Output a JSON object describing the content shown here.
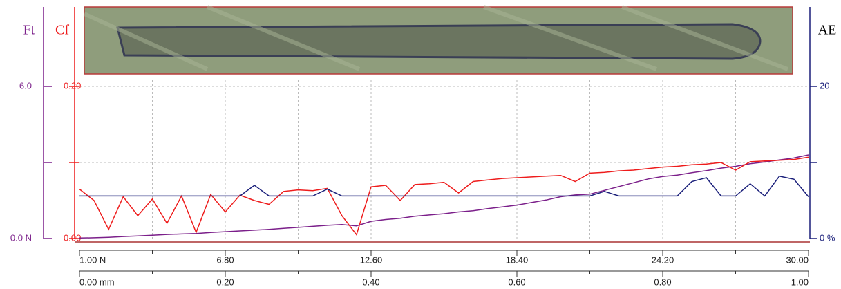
{
  "chart_data": {
    "type": "line",
    "x": [
      0,
      0.02,
      0.04,
      0.06,
      0.08,
      0.1,
      0.12,
      0.14,
      0.16,
      0.18,
      0.2,
      0.22,
      0.24,
      0.26,
      0.28,
      0.3,
      0.32,
      0.34,
      0.36,
      0.38,
      0.4,
      0.42,
      0.44,
      0.46,
      0.48,
      0.5,
      0.52,
      0.54,
      0.56,
      0.58,
      0.6,
      0.62,
      0.64,
      0.66,
      0.68,
      0.7,
      0.72,
      0.74,
      0.76,
      0.78,
      0.8,
      0.82,
      0.84,
      0.86,
      0.88,
      0.9,
      0.92,
      0.94,
      0.96,
      0.98,
      1
    ],
    "xlim": [
      0,
      1
    ],
    "xticks": [
      {
        "value": 0,
        "label": "0.00 mm"
      },
      {
        "value": 0.1,
        "label": null
      },
      {
        "value": 0.2,
        "label": "0.20"
      },
      {
        "value": 0.3,
        "label": null
      },
      {
        "value": 0.4,
        "label": "0.40"
      },
      {
        "value": 0.5,
        "label": null
      },
      {
        "value": 0.6,
        "label": "0.60"
      },
      {
        "value": 0.7,
        "label": null
      },
      {
        "value": 0.8,
        "label": "0.80"
      },
      {
        "value": 0.9,
        "label": null
      },
      {
        "value": 1,
        "label": "1.00"
      }
    ],
    "x2lim": [
      1,
      30
    ],
    "x2ticks": [
      {
        "value": 1,
        "label": "1.00 N"
      },
      {
        "value": 3.9,
        "label": null
      },
      {
        "value": 6.8,
        "label": "6.80"
      },
      {
        "value": 9.7,
        "label": null
      },
      {
        "value": 12.6,
        "label": "12.60"
      },
      {
        "value": 15.5,
        "label": null
      },
      {
        "value": 18.4,
        "label": "18.40"
      },
      {
        "value": 21.3,
        "label": null
      },
      {
        "value": 24.2,
        "label": "24.20"
      },
      {
        "value": 27.1,
        "label": null
      },
      {
        "value": 30,
        "label": "30.00"
      }
    ],
    "ylim": [
      0,
      6
    ],
    "yticks": [
      {
        "value": 0,
        "label": "0.0 N"
      },
      {
        "value": 3,
        "label": null
      },
      {
        "value": 6,
        "label": "6.0"
      }
    ],
    "y2lim": [
      0,
      0.2
    ],
    "y2ticks": [
      {
        "value": 0,
        "label": "0.00"
      },
      {
        "value": 0.1,
        "label": null
      },
      {
        "value": 0.2,
        "label": "0.20"
      }
    ],
    "y3lim": [
      0,
      20
    ],
    "y3ticks": [
      {
        "value": 0,
        "label": "0 %"
      },
      {
        "value": 10,
        "label": null
      },
      20
    ],
    "grid": true,
    "series": [
      {
        "name": "Ft",
        "color": "#7b1f8a",
        "axis": "y",
        "values": [
          0.02,
          0.03,
          0.05,
          0.08,
          0.1,
          0.13,
          0.16,
          0.18,
          0.2,
          0.24,
          0.27,
          0.3,
          0.33,
          0.36,
          0.4,
          0.44,
          0.48,
          0.52,
          0.55,
          0.5,
          0.68,
          0.75,
          0.8,
          0.88,
          0.93,
          0.98,
          1.05,
          1.1,
          1.18,
          1.25,
          1.32,
          1.42,
          1.52,
          1.65,
          1.72,
          1.75,
          1.9,
          2.05,
          2.2,
          2.35,
          2.45,
          2.5,
          2.6,
          2.68,
          2.78,
          2.85,
          2.95,
          3.02,
          3.1,
          3.18,
          3.3
        ]
      },
      {
        "name": "Cf",
        "color": "#ee1c1c",
        "axis": "y2",
        "values": [
          0.065,
          0.05,
          0.012,
          0.055,
          0.03,
          0.052,
          0.02,
          0.056,
          0.008,
          0.058,
          0.035,
          0.057,
          0.05,
          0.045,
          0.062,
          0.064,
          0.063,
          0.066,
          0.03,
          0.005,
          0.068,
          0.07,
          0.05,
          0.071,
          0.072,
          0.074,
          0.06,
          0.075,
          0.077,
          0.079,
          0.08,
          0.081,
          0.082,
          0.083,
          0.075,
          0.086,
          0.087,
          0.089,
          0.09,
          0.092,
          0.094,
          0.095,
          0.097,
          0.098,
          0.1,
          0.09,
          0.101,
          0.102,
          0.103,
          0.104,
          0.107
        ]
      },
      {
        "name": "AE",
        "color": "#1a1f7a",
        "axis": "y3",
        "values": [
          5.6,
          5.6,
          5.6,
          5.6,
          5.6,
          5.6,
          5.6,
          5.6,
          5.6,
          5.6,
          5.6,
          5.6,
          7.0,
          5.6,
          5.6,
          5.6,
          5.6,
          6.5,
          5.6,
          5.6,
          5.6,
          5.6,
          5.6,
          5.6,
          5.6,
          5.6,
          5.6,
          5.6,
          5.6,
          5.6,
          5.6,
          5.6,
          5.6,
          5.6,
          5.6,
          5.6,
          6.2,
          5.6,
          5.6,
          5.6,
          5.6,
          5.6,
          7.5,
          8.0,
          5.6,
          5.6,
          7.2,
          5.6,
          8.2,
          7.8,
          5.5
        ]
      }
    ]
  }
}
